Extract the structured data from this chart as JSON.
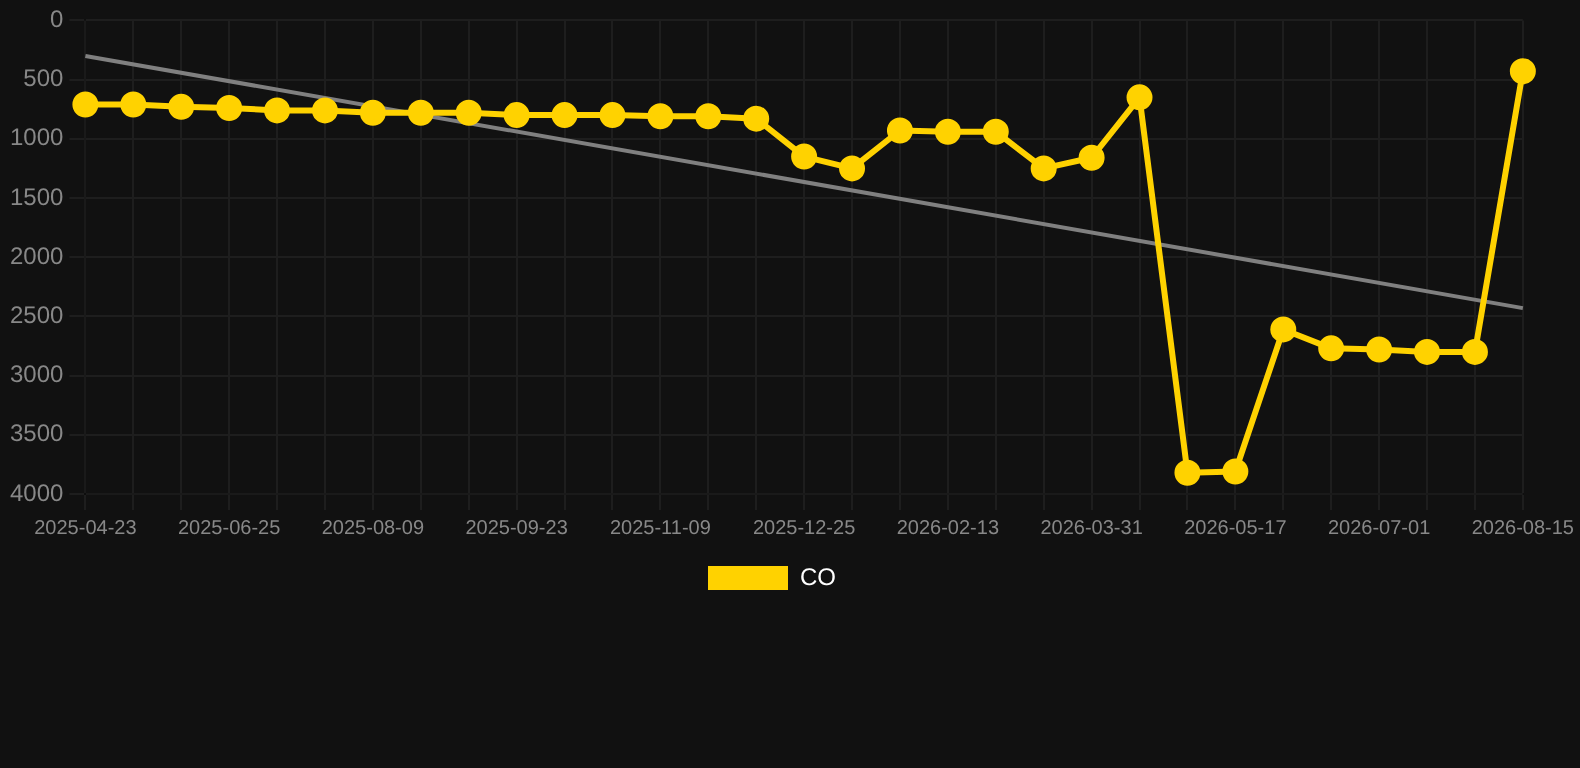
{
  "chart_data": {
    "type": "line",
    "categories": [
      "2025-04-23",
      null,
      null,
      "2025-06-25",
      null,
      null,
      "2025-08-09",
      null,
      null,
      "2025-09-23",
      null,
      null,
      "2025-11-09",
      null,
      null,
      "2025-12-25",
      null,
      null,
      "2026-02-13",
      null,
      null,
      "2026-03-31",
      null,
      null,
      "2026-05-17",
      null,
      null,
      "2026-07-01",
      null,
      null,
      "2026-08-15"
    ],
    "series": [
      {
        "name": "CO",
        "color": "#ffd200",
        "values": [
          710,
          710,
          730,
          740,
          760,
          760,
          780,
          780,
          780,
          800,
          800,
          800,
          810,
          810,
          830,
          1150,
          1250,
          930,
          940,
          940,
          1250,
          1160,
          650,
          3820,
          3810,
          2610,
          2770,
          2780,
          2800,
          2800,
          430
        ]
      },
      {
        "color": "#808080",
        "marker": "none",
        "values": [
          300,
          null,
          null,
          null,
          null,
          null,
          null,
          null,
          null,
          null,
          null,
          null,
          null,
          null,
          null,
          null,
          null,
          null,
          null,
          null,
          null,
          null,
          null,
          null,
          null,
          null,
          null,
          null,
          null,
          null,
          2430
        ]
      }
    ],
    "ylim": [
      4000,
      0
    ],
    "yticks": [
      0,
      500,
      1000,
      1500,
      2000,
      2500,
      3000,
      3500,
      4000
    ],
    "grid": true,
    "legend": "bottom",
    "marker": "circle"
  }
}
